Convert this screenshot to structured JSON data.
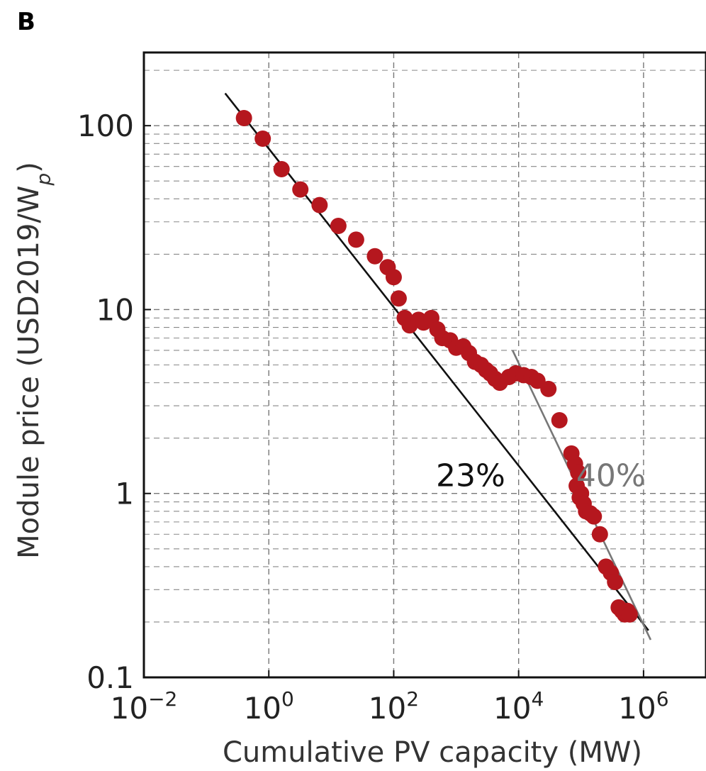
{
  "panel_label": "B",
  "chart_data": {
    "type": "scatter",
    "title": "",
    "xlabel": "Cumulative PV capacity (MW)",
    "ylabel_main": "Module price (USD2019/W",
    "ylabel_sub": "p",
    "ylabel_close": ")",
    "x_scale": "log",
    "y_scale": "log",
    "xlim": [
      0.01,
      10000000
    ],
    "ylim": [
      0.1,
      250
    ],
    "x_ticks": [
      {
        "value": 0.01,
        "base": "10",
        "exp": "−2"
      },
      {
        "value": 1,
        "base": "10",
        "exp": "0"
      },
      {
        "value": 100,
        "base": "10",
        "exp": "2"
      },
      {
        "value": 10000,
        "base": "10",
        "exp": "4"
      },
      {
        "value": 1000000,
        "base": "10",
        "exp": "6"
      }
    ],
    "y_ticks": [
      {
        "value": 0.1,
        "label": "0.1"
      },
      {
        "value": 1,
        "label": "1"
      },
      {
        "value": 10,
        "label": "10"
      },
      {
        "value": 100,
        "label": "100"
      }
    ],
    "grid": true,
    "marker_color": "#b5171e",
    "series": [
      {
        "points": [
          [
            0.4,
            110
          ],
          [
            0.8,
            85
          ],
          [
            1.6,
            58
          ],
          [
            3.2,
            45
          ],
          [
            6.5,
            37
          ],
          [
            13,
            28.5
          ],
          [
            25,
            24
          ],
          [
            50,
            19.5
          ],
          [
            80,
            17
          ],
          [
            100,
            15
          ],
          [
            120,
            11.5
          ],
          [
            150,
            9
          ],
          [
            180,
            8.2
          ],
          [
            250,
            8.8
          ],
          [
            300,
            8.5
          ],
          [
            400,
            9
          ],
          [
            500,
            7.8
          ],
          [
            600,
            7
          ],
          [
            800,
            6.8
          ],
          [
            1000,
            6.2
          ],
          [
            1300,
            6.3
          ],
          [
            1600,
            5.8
          ],
          [
            2000,
            5.2
          ],
          [
            2500,
            5.0
          ],
          [
            3000,
            4.7
          ],
          [
            3500,
            4.5
          ],
          [
            4200,
            4.2
          ],
          [
            5000,
            4.0
          ],
          [
            7000,
            4.3
          ],
          [
            9000,
            4.5
          ],
          [
            12000,
            4.4
          ],
          [
            16000,
            4.3
          ],
          [
            20000,
            4.1
          ],
          [
            30000,
            3.7
          ],
          [
            45000,
            2.5
          ],
          [
            70000,
            1.65
          ],
          [
            80000,
            1.45
          ],
          [
            90000,
            1.3
          ],
          [
            85000,
            1.1
          ],
          [
            100000,
            1.0
          ],
          [
            95000,
            0.95
          ],
          [
            110000,
            0.88
          ],
          [
            120000,
            0.8
          ],
          [
            140000,
            0.78
          ],
          [
            160000,
            0.75
          ],
          [
            200000,
            0.6
          ],
          [
            250000,
            0.4
          ],
          [
            300000,
            0.37
          ],
          [
            350000,
            0.33
          ],
          [
            400000,
            0.24
          ],
          [
            450000,
            0.23
          ],
          [
            500000,
            0.22
          ],
          [
            550000,
            0.23
          ],
          [
            600000,
            0.22
          ]
        ]
      }
    ],
    "fit_lines": [
      {
        "label": "23%",
        "color": "#111111",
        "x": [
          0.2,
          1200000
        ],
        "y": [
          150,
          0.18
        ],
        "label_at": [
          1700,
          1.0
        ]
      },
      {
        "label": "40%",
        "color": "#777777",
        "x": [
          8000,
          1300000
        ],
        "y": [
          6.0,
          0.16
        ],
        "label_at": [
          300000,
          1.0
        ]
      }
    ]
  }
}
